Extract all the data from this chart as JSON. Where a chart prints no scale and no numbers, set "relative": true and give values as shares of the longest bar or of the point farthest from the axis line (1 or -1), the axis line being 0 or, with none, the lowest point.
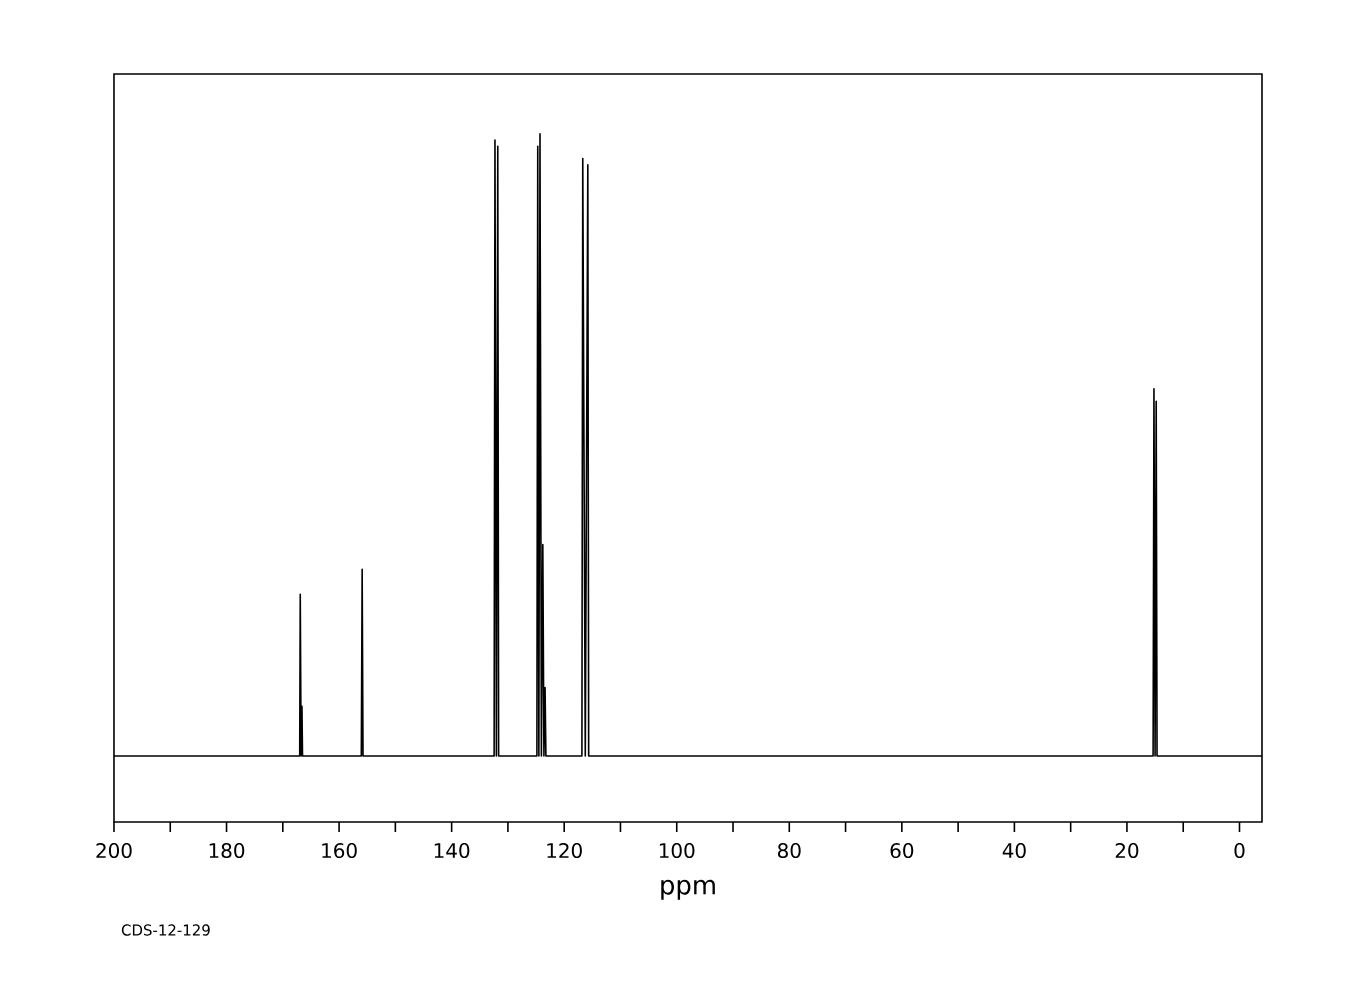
{
  "chart_data": {
    "type": "line",
    "relative": true,
    "color": "#000000",
    "xlabel": "ppm",
    "annotations": [
      "CDS-12-129"
    ],
    "xlim": [
      200,
      -4
    ],
    "xticks": [
      200,
      180,
      160,
      140,
      120,
      100,
      80,
      60,
      40,
      20,
      0
    ],
    "x": [
      200,
      167.0,
      166.9,
      166.75,
      166.6,
      166.5,
      156.05,
      155.9,
      155.75,
      132.45,
      132.3,
      132.05,
      131.8,
      131.65,
      124.85,
      124.7,
      124.5,
      124.3,
      124.05,
      123.8,
      123.6,
      123.4,
      123.25,
      116.85,
      116.7,
      116.25,
      115.8,
      115.65,
      15.35,
      15.2,
      15.0,
      14.8,
      14.65,
      -4
    ],
    "values": [
      0,
      0,
      0.26,
      0,
      0.08,
      0,
      0,
      0.3,
      0,
      0,
      0.99,
      0,
      0.98,
      0,
      0,
      0.98,
      0,
      1.0,
      0,
      0.34,
      0,
      0.11,
      0,
      0,
      0.96,
      0,
      0.95,
      0,
      0,
      0.59,
      0,
      0.57,
      0,
      0
    ]
  }
}
